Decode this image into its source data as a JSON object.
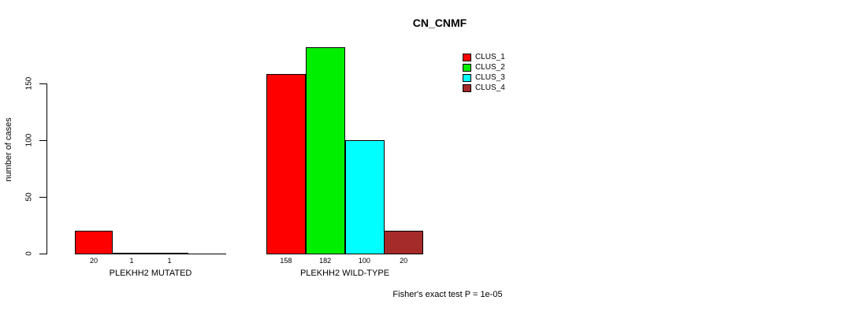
{
  "chart_data": {
    "type": "bar",
    "title": "CN_CNMF",
    "ylabel": "number of cases",
    "xlabel": "",
    "annotation": "Fisher's exact test P = 1e-05",
    "grid": false,
    "legend_position": "top-right",
    "yticks": [
      0,
      50,
      100,
      150
    ],
    "ylim": [
      0,
      190
    ],
    "categories": [
      "PLEKHH2 MUTATED",
      "PLEKHH2 WILD-TYPE"
    ],
    "series": [
      {
        "name": "CLUS_1",
        "color": "#ff0000",
        "values": [
          20,
          158
        ]
      },
      {
        "name": "CLUS_2",
        "color": "#00ee00",
        "values": [
          1,
          182
        ]
      },
      {
        "name": "CLUS_3",
        "color": "#00ffff",
        "values": [
          1,
          100
        ]
      },
      {
        "name": "CLUS_4",
        "color": "#a52a2a",
        "values": [
          0,
          20
        ]
      }
    ],
    "bar_labels": [
      [
        "20",
        "1",
        "1",
        ""
      ],
      [
        "158",
        "182",
        "100",
        "20"
      ]
    ],
    "colors": {
      "axis": "#000000",
      "text": "#000000",
      "background": "#ffffff"
    }
  }
}
